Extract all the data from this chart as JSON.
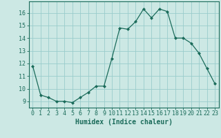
{
  "x": [
    0,
    1,
    2,
    3,
    4,
    5,
    6,
    7,
    8,
    9,
    10,
    11,
    12,
    13,
    14,
    15,
    16,
    17,
    18,
    19,
    20,
    21,
    22,
    23
  ],
  "y": [
    11.8,
    9.5,
    9.3,
    9.0,
    9.0,
    8.9,
    9.3,
    9.7,
    10.2,
    10.2,
    12.4,
    14.8,
    14.7,
    15.3,
    16.3,
    15.6,
    16.3,
    16.1,
    14.0,
    14.0,
    13.6,
    12.8,
    11.6,
    10.4
  ],
  "line_color": "#1a6b5a",
  "marker": "D",
  "marker_size": 2.0,
  "bg_color": "#cce8e4",
  "grid_color": "#99cccc",
  "xlabel": "Humidex (Indice chaleur)",
  "xlim": [
    -0.5,
    23.5
  ],
  "ylim": [
    8.5,
    16.9
  ],
  "yticks": [
    9,
    10,
    11,
    12,
    13,
    14,
    15,
    16
  ],
  "xticks": [
    0,
    1,
    2,
    3,
    4,
    5,
    6,
    7,
    8,
    9,
    10,
    11,
    12,
    13,
    14,
    15,
    16,
    17,
    18,
    19,
    20,
    21,
    22,
    23
  ],
  "xtick_labels": [
    "0",
    "1",
    "2",
    "3",
    "4",
    "5",
    "6",
    "7",
    "8",
    "9",
    "10",
    "11",
    "12",
    "13",
    "14",
    "15",
    "16",
    "17",
    "18",
    "19",
    "20",
    "21",
    "22",
    "23"
  ],
  "tick_color": "#1a6b5a",
  "tick_fontsize": 6,
  "xlabel_fontsize": 7,
  "linewidth": 0.9
}
